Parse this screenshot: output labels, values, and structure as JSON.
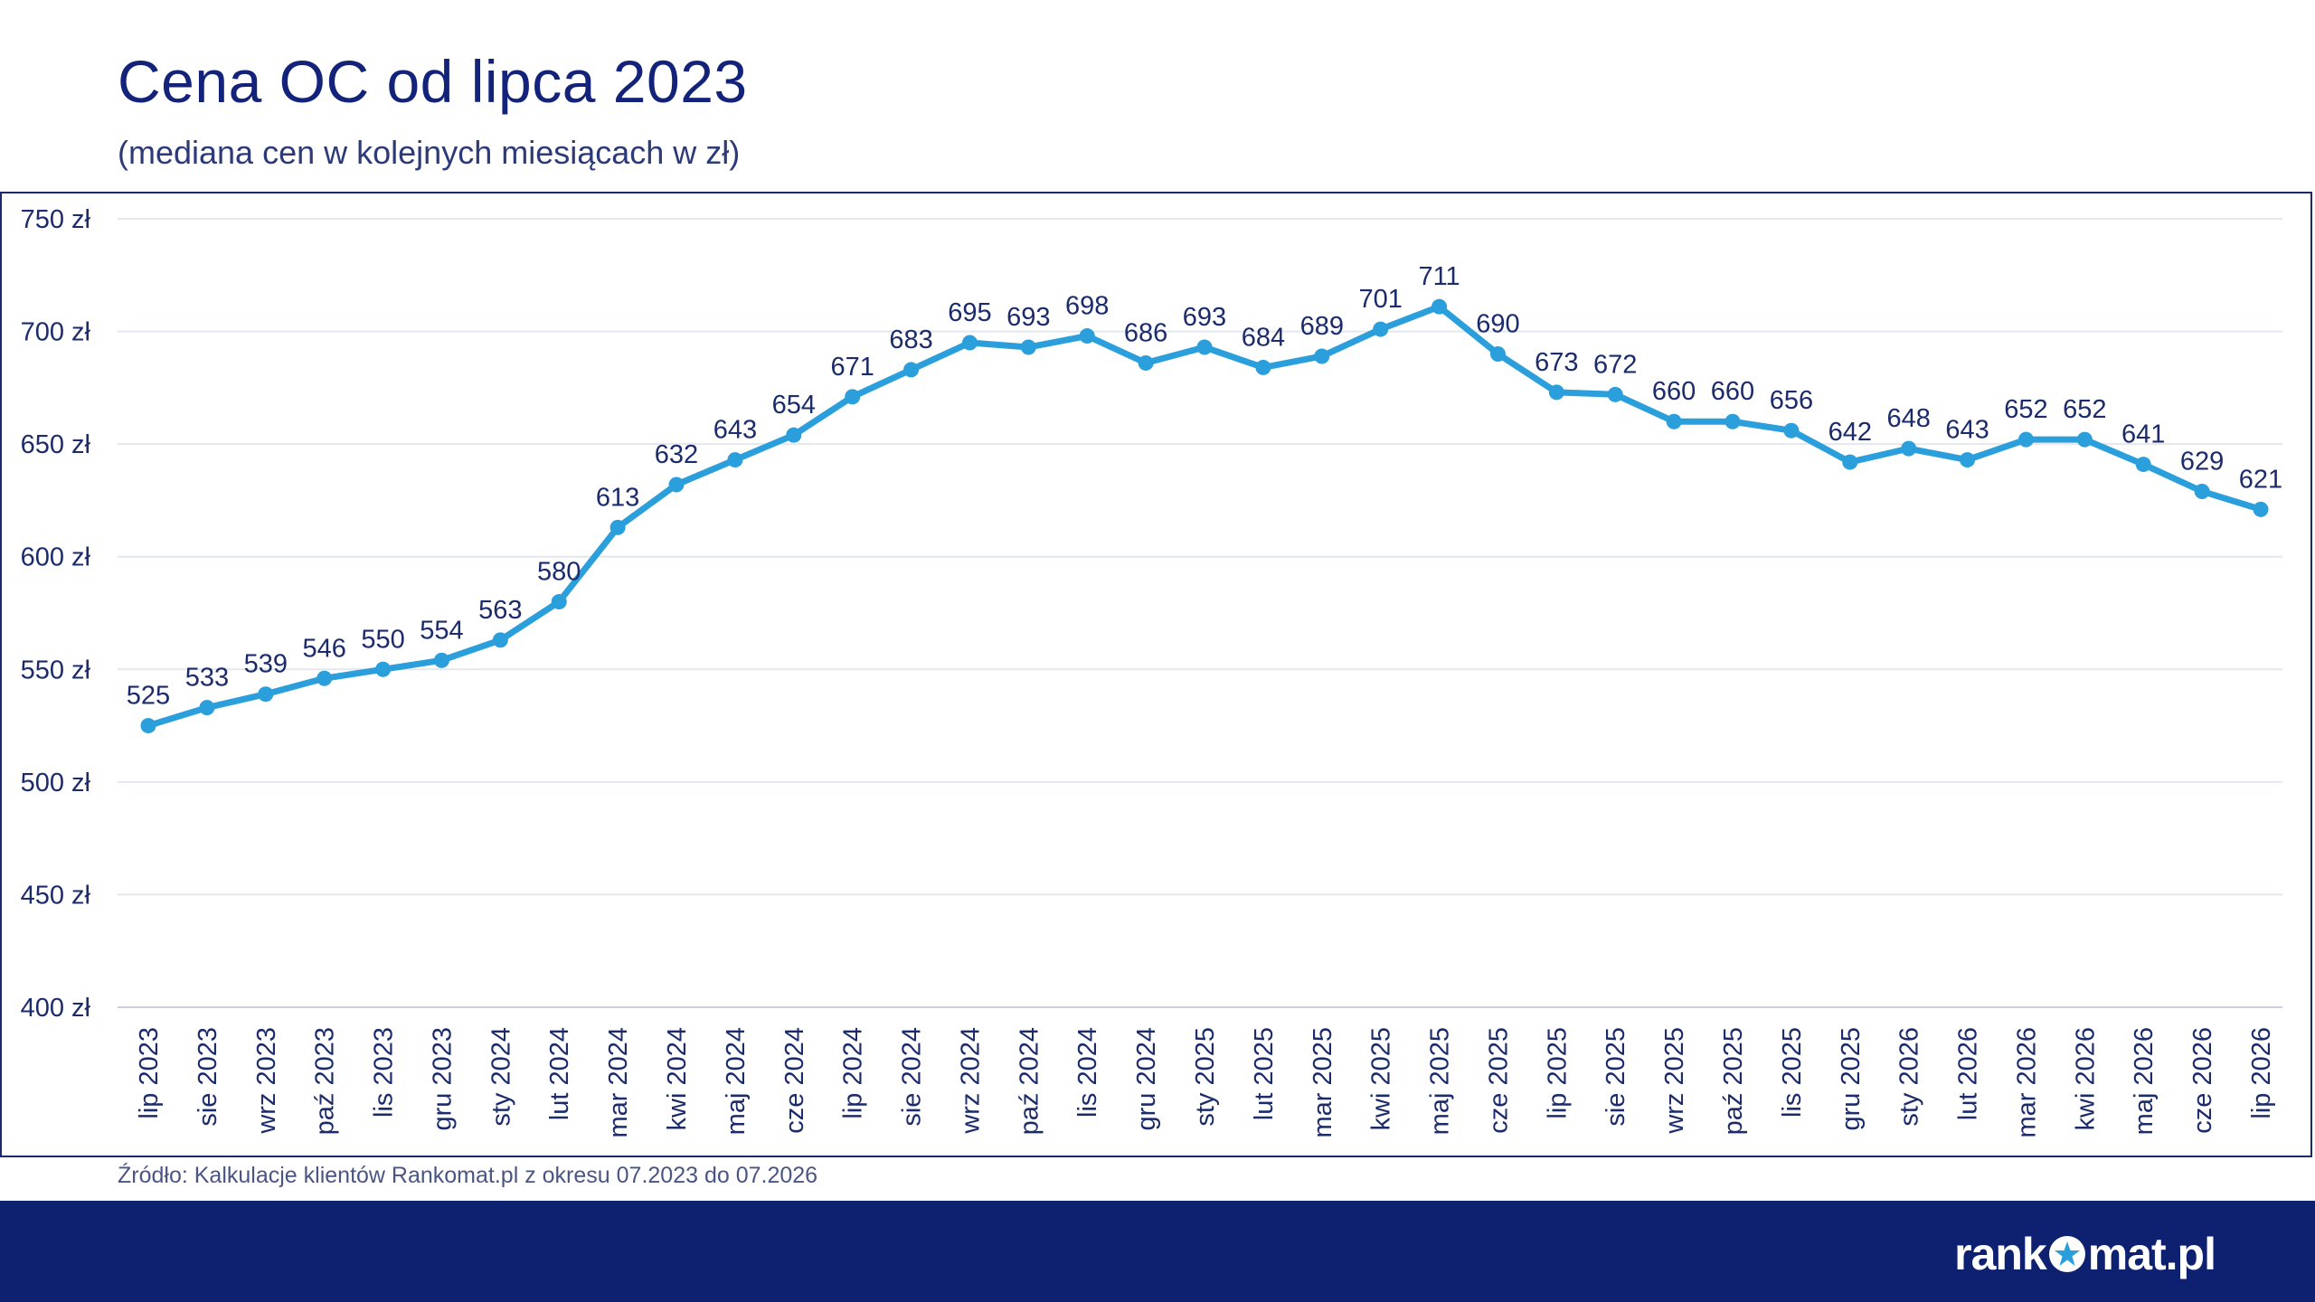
{
  "header": {
    "title": "Cena OC od lipca 2023",
    "subtitle": "(mediana cen w kolejnych miesiącach w zł)"
  },
  "footer": {
    "source": "Źródło: Kalkulacje klientów Rankomat.pl z okresu 07.2023 do 07.2026",
    "logo_left": "rank",
    "logo_right": "mat.pl",
    "logo_text": "rankomat.pl"
  },
  "colors": {
    "line": "#2b9fdb",
    "text": "#1b2b6b",
    "frame": "#1a2a6c",
    "footer_bg": "#0e2170",
    "grid": "#e4e7ee"
  },
  "chart_data": {
    "type": "line",
    "title": "Cena OC od lipca 2023",
    "subtitle": "(mediana cen w kolejnych miesiącach w zł)",
    "xlabel": "",
    "ylabel": "",
    "ylim": [
      400,
      750
    ],
    "yticks": [
      400,
      450,
      500,
      550,
      600,
      650,
      700,
      750
    ],
    "y_tick_suffix": " zł",
    "grid": true,
    "categories": [
      "lip 2023",
      "sie 2023",
      "wrz 2023",
      "paź 2023",
      "lis 2023",
      "gru 2023",
      "sty 2024",
      "lut 2024",
      "mar 2024",
      "kwi 2024",
      "maj 2024",
      "cze 2024",
      "lip 2024",
      "sie 2024",
      "wrz 2024",
      "paź 2024",
      "lis 2024",
      "gru 2024",
      "sty 2025",
      "lut 2025",
      "mar 2025",
      "kwi 2025",
      "maj 2025",
      "cze 2025",
      "lip 2025",
      "sie 2025",
      "wrz 2025",
      "paź 2025",
      "lis 2025",
      "gru 2025",
      "sty 2026",
      "lut 2026",
      "mar 2026",
      "kwi 2026",
      "maj 2026",
      "cze 2026",
      "lip 2026"
    ],
    "values": [
      525,
      533,
      539,
      546,
      550,
      554,
      563,
      580,
      613,
      632,
      643,
      654,
      671,
      683,
      695,
      693,
      698,
      686,
      693,
      684,
      689,
      701,
      711,
      690,
      673,
      672,
      660,
      660,
      656,
      642,
      648,
      643,
      652,
      652,
      641,
      629,
      621
    ]
  }
}
